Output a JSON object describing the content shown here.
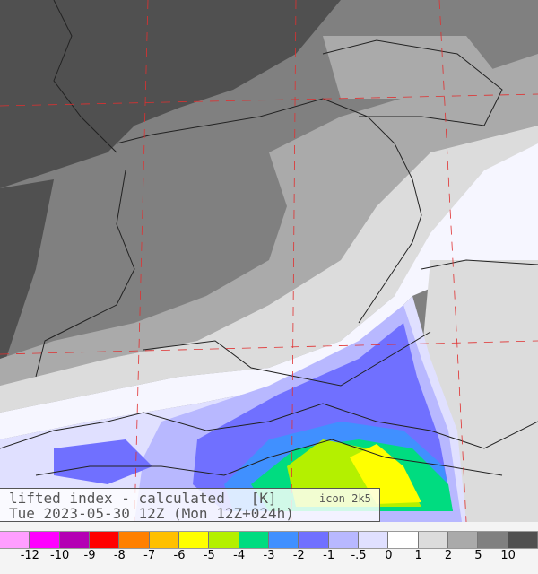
{
  "title": "lifted index - calculated   [K]",
  "model": "icon 2k5",
  "subtitle": "Tue 2023-05-30 12Z (Mon 12Z+024h)",
  "legend": {
    "colors": [
      "#ff9eff",
      "#ff00ff",
      "#b400b4",
      "#ff0000",
      "#ff8000",
      "#ffc000",
      "#ffff00",
      "#b4f000",
      "#00dc80",
      "#4090ff",
      "#7070ff",
      "#b8b8ff",
      "#e0e0ff",
      "#ffffff",
      "#dcdcdc",
      "#aaaaaa",
      "#808080",
      "#505050"
    ],
    "labels": [
      "-12",
      "-10",
      "-9",
      "-8",
      "-7",
      "-6",
      "-5",
      "-4",
      "-3",
      "-2",
      "-1",
      "-.5",
      "0",
      "1",
      "2",
      "5",
      "10"
    ]
  },
  "map": {
    "grid_color": "#e03030",
    "border_color": "#222222"
  }
}
